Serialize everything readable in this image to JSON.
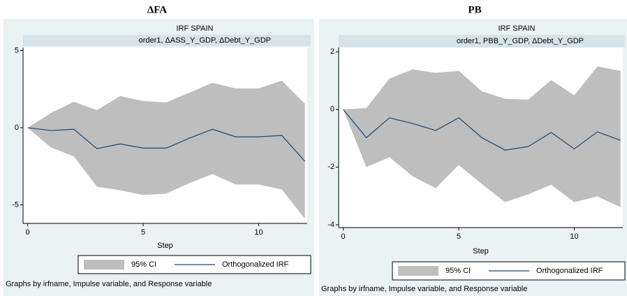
{
  "chart_data": [
    {
      "type": "line",
      "title": "ΔFA",
      "header": "IRF SPAIN",
      "subtitle": "order1, ΔASS_Y_GDP, ΔDebt_Y_GDP",
      "xlabel": "Step",
      "note": "Graphs by irfname, Impulse variable, and Response variable",
      "x": [
        0,
        1,
        2,
        3,
        4,
        5,
        6,
        7,
        8,
        9,
        10,
        11,
        12
      ],
      "series": [
        {
          "name": "95% CI",
          "color": "#bebebe",
          "upper": [
            0,
            0.95,
            1.68,
            1.14,
            2.05,
            1.73,
            1.64,
            2.27,
            2.91,
            2.55,
            2.55,
            3.05,
            1.55
          ],
          "lower": [
            0,
            -1.27,
            -1.86,
            -3.82,
            -4.05,
            -4.36,
            -4.27,
            -3.59,
            -3.0,
            -3.68,
            -3.68,
            -4.0,
            -5.9
          ]
        },
        {
          "name": "Orthogonalized IRF",
          "color": "#1a476f",
          "values": [
            0,
            -0.18,
            -0.1,
            -1.36,
            -1.05,
            -1.32,
            -1.32,
            -0.68,
            -0.1,
            -0.59,
            -0.59,
            -0.5,
            -2.18
          ]
        }
      ],
      "xlim": [
        -0.2,
        12.1
      ],
      "xticks": [
        0,
        5,
        10
      ],
      "ylim": [
        -6.2,
        5.2
      ],
      "yticks": [
        -5,
        0,
        5
      ]
    },
    {
      "type": "line",
      "title": "PB",
      "header": "IRF SPAIN",
      "subtitle": "order1, PBB_Y_GDP, ΔDebt_Y_GDP",
      "xlabel": "Step",
      "note": "Graphs by irfname, Impulse variable, and Response variable",
      "x": [
        0,
        1,
        2,
        3,
        4,
        5,
        6,
        7,
        8,
        9,
        10,
        11,
        12
      ],
      "series": [
        {
          "name": "95% CI",
          "color": "#bebebe",
          "upper": [
            0,
            0.05,
            1.07,
            1.39,
            1.27,
            1.34,
            0.63,
            0.37,
            0.34,
            1.02,
            0.49,
            1.49,
            1.34
          ],
          "lower": [
            0,
            -2.0,
            -1.66,
            -2.32,
            -2.73,
            -1.93,
            -2.59,
            -3.22,
            -2.95,
            -2.61,
            -3.22,
            -3.02,
            -3.39
          ]
        },
        {
          "name": "Orthogonalized IRF",
          "color": "#1a476f",
          "values": [
            0,
            -0.98,
            -0.29,
            -0.49,
            -0.73,
            -0.29,
            -0.98,
            -1.41,
            -1.29,
            -0.8,
            -1.37,
            -0.78,
            -1.07
          ]
        }
      ],
      "xlim": [
        -0.2,
        12.1
      ],
      "xticks": [
        0,
        5,
        10
      ],
      "ylim": [
        -4.1,
        2.15
      ],
      "yticks": [
        -4,
        -2,
        0,
        2
      ]
    }
  ]
}
